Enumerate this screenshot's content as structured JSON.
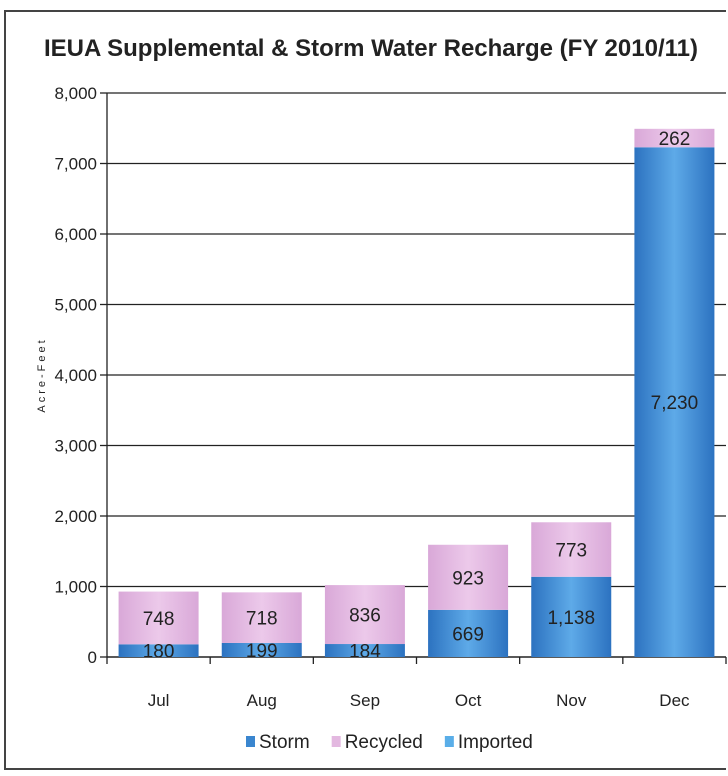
{
  "chart_data": {
    "type": "bar",
    "stacked": true,
    "title": "IEUA Supplemental & Storm Water Recharge (FY 2010/11)",
    "xlabel": "",
    "ylabel": "Acre-Feet",
    "ylim": [
      0,
      8000
    ],
    "yticks": [
      "0",
      "1,000",
      "2,000",
      "3,000",
      "4,000",
      "5,000",
      "6,000",
      "7,000",
      "8,000"
    ],
    "grid": true,
    "legend_position": "bottom",
    "categories": [
      "Jul",
      "Aug",
      "Sep",
      "Oct",
      "Nov",
      "Dec"
    ],
    "series": [
      {
        "name": "Storm",
        "values": [
          180,
          199,
          184,
          669,
          1138,
          7230
        ],
        "labels": [
          "180",
          "199",
          "184",
          "669",
          "1,138",
          "7,230"
        ],
        "color": "#3a86cf"
      },
      {
        "name": "Recycled",
        "values": [
          748,
          718,
          836,
          923,
          773,
          262
        ],
        "labels": [
          "748",
          "718",
          "836",
          "923",
          "773",
          "262"
        ],
        "color": "#e3b8e0"
      },
      {
        "name": "Imported",
        "values": [
          0,
          0,
          0,
          0,
          0,
          0
        ],
        "labels": [],
        "color": "#5aaee8"
      }
    ]
  }
}
